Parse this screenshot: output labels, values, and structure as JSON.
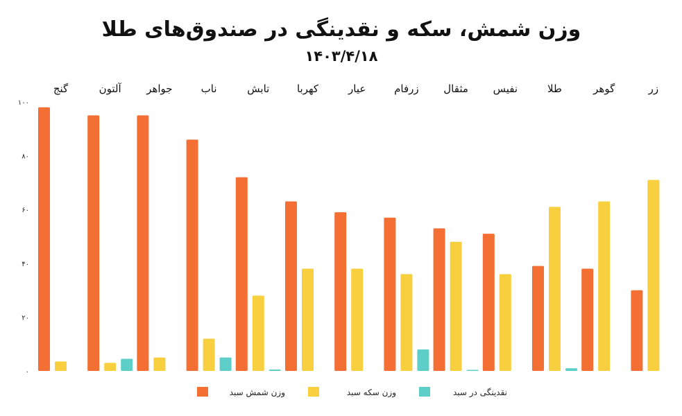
{
  "chart_data": {
    "type": "bar",
    "title": "وزن شمش، سکه و نقدینگی در صندوق‌های طلا",
    "subtitle": "۱۴۰۳/۴/۱۸",
    "categories": [
      "گنج",
      "آلتون",
      "جواهر",
      "ناب",
      "تابش",
      "کهربا",
      "عیار",
      "زرفام",
      "مثقال",
      "نفیس",
      "طلا",
      "گوهر",
      "زر"
    ],
    "series": [
      {
        "name": "وزن شمش سبد",
        "color": "#f36f33",
        "values": [
          98,
          95,
          95,
          86,
          72,
          63,
          59,
          57,
          53,
          51,
          39,
          38,
          30
        ]
      },
      {
        "name": "وزن سکه سبد",
        "color": "#f8cf3e",
        "values": [
          3.5,
          3,
          5,
          12,
          28,
          38,
          38,
          36,
          48,
          36,
          61,
          63,
          71
        ]
      },
      {
        "name": "نقدینگی در سبد",
        "color": "#5ecfc8",
        "values": [
          0,
          4.5,
          0,
          5,
          0.5,
          0,
          0,
          8,
          0.3,
          0,
          1,
          0,
          0
        ]
      }
    ],
    "yticks": [
      "۰",
      "۲۰",
      "۴۰",
      "۶۰",
      "۸۰",
      "۱۰۰"
    ],
    "ylim": [
      0,
      100
    ],
    "grid": false,
    "legend": "bottom"
  }
}
